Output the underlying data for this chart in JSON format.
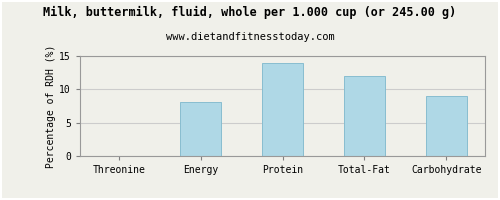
{
  "title": "Milk, buttermilk, fluid, whole per 1.000 cup (or 245.00 g)",
  "subtitle": "www.dietandfitnesstoday.com",
  "categories": [
    "Threonine",
    "Energy",
    "Protein",
    "Total-Fat",
    "Carbohydrate"
  ],
  "values": [
    0,
    8.1,
    14.0,
    12.0,
    9.0
  ],
  "bar_color": "#afd8e6",
  "bar_edge_color": "#88bdd0",
  "ylabel": "Percentage of RDH (%)",
  "ylim": [
    0,
    15
  ],
  "yticks": [
    0,
    5,
    10,
    15
  ],
  "background_color": "#f0f0ea",
  "plot_bg_color": "#f0f0ea",
  "grid_color": "#cccccc",
  "border_color": "#999999",
  "title_fontsize": 8.5,
  "subtitle_fontsize": 7.5,
  "label_fontsize": 7,
  "tick_fontsize": 7,
  "font_family": "monospace"
}
